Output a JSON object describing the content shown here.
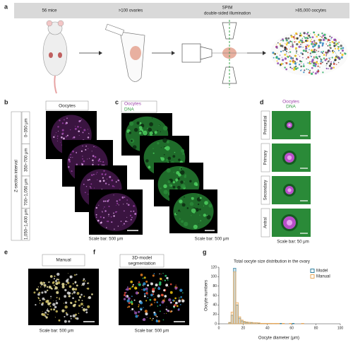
{
  "panel_labels": [
    "a",
    "b",
    "c",
    "d",
    "e",
    "f",
    "g"
  ],
  "panel_a": {
    "mice": "56 mice",
    "ovaries": ">100 ovaries",
    "spim": [
      "SPIM",
      "double-sided illumination"
    ],
    "oocytes": ">85,000 oocytes"
  },
  "panel_b": {
    "header": "Oocytes",
    "axis_label": "Z-section interval",
    "intervals": [
      "0–350 μm",
      "350–700 μm",
      "700–1,050 μm",
      "1,050–1,400 μm"
    ],
    "scale_bar": "Scale bar: 500 μm"
  },
  "panel_c": {
    "header": [
      "Oocytes",
      "DNA"
    ],
    "scale_bar": "Scale bar: 500 μm"
  },
  "panel_d": {
    "header": [
      "Oocytes",
      "DNA"
    ],
    "stages": [
      "Primordial",
      "Primary",
      "Secondary",
      "Antral"
    ],
    "scale_bar": "Scale bar: 50 μm"
  },
  "panel_e": {
    "header": "Manual",
    "scale_bar": "Scale bar: 500 μm"
  },
  "panel_f": {
    "header": [
      "3D-model",
      "segmentation"
    ],
    "scale_bar": "Scale bar: 500 μm"
  },
  "panel_g": {
    "type": "histogram",
    "title": "Total oocyte size distribution in the ovary",
    "x_label": "Oocyte diameter (μm)",
    "y_label": "Oocyte numbers",
    "bins": [
      0,
      2,
      4,
      6,
      8,
      10,
      12,
      14,
      16,
      18,
      20,
      22,
      24,
      26,
      28,
      30,
      32,
      34,
      36,
      38,
      40,
      42,
      44,
      46,
      48,
      50,
      52,
      54,
      56,
      58,
      60,
      62,
      64,
      66,
      68,
      70,
      72,
      74,
      76,
      78,
      80,
      82,
      84,
      86,
      88,
      90,
      92,
      94,
      96,
      98,
      100
    ],
    "series": [
      {
        "name": "Model",
        "color": "#2f7f9e",
        "values": [
          0,
          0,
          0,
          0,
          2,
          18,
          118,
          40,
          12,
          6,
          4,
          3,
          3,
          2,
          2,
          2,
          1,
          1,
          1,
          1,
          1,
          1,
          0,
          1,
          0,
          1,
          0,
          0,
          0,
          0,
          1,
          0,
          0,
          0,
          0,
          0,
          0,
          0,
          0,
          0,
          0,
          0,
          0,
          0,
          0,
          0,
          0,
          0,
          0,
          0
        ]
      },
      {
        "name": "Manual",
        "color": "#e8a85a",
        "values": [
          0,
          0,
          0,
          0,
          3,
          25,
          110,
          45,
          15,
          8,
          5,
          4,
          3,
          3,
          2,
          2,
          2,
          1,
          1,
          1,
          1,
          1,
          1,
          1,
          1,
          0,
          1,
          0,
          0,
          1,
          0,
          0,
          0,
          0,
          1,
          0,
          0,
          0,
          0,
          0,
          0,
          0,
          0,
          0,
          0,
          0,
          0,
          0,
          0,
          0
        ]
      }
    ],
    "xlim": [
      0,
      100
    ],
    "ylim": [
      0,
      120
    ],
    "xticks": [
      0,
      20,
      40,
      60,
      80,
      100
    ],
    "yticks": [
      0,
      20,
      40,
      60,
      80,
      100,
      120
    ]
  }
}
